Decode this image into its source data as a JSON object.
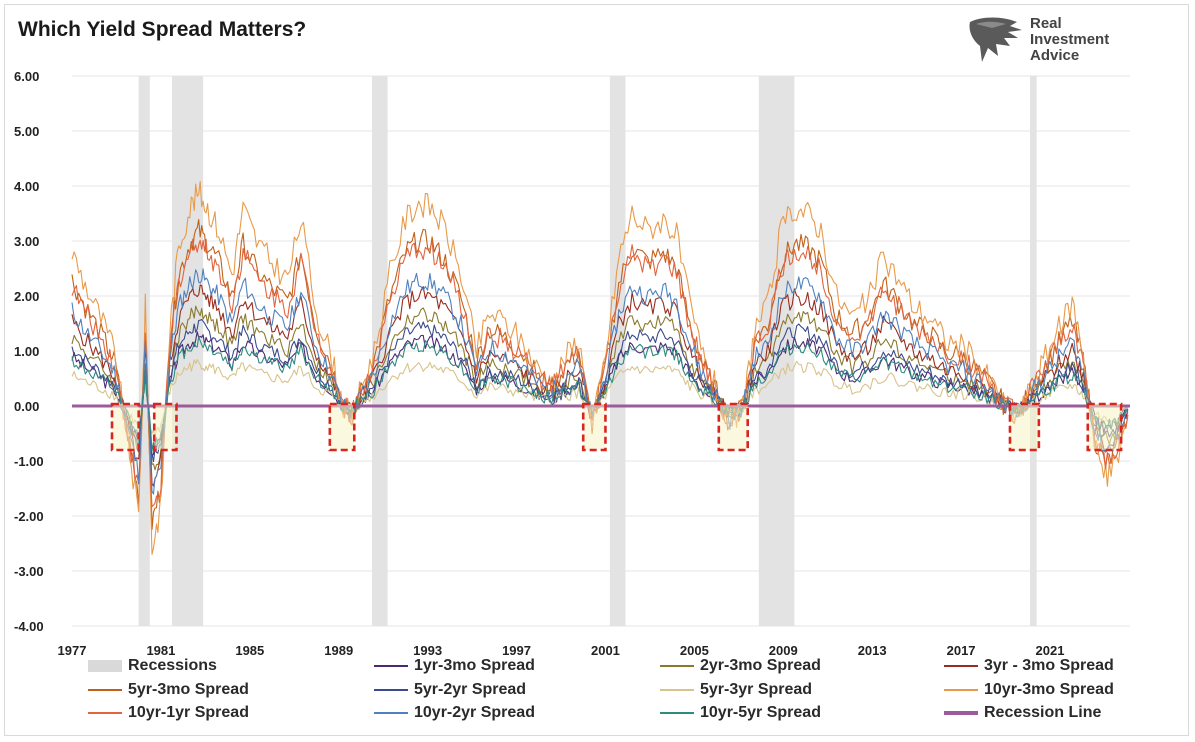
{
  "header": {
    "title": "Which Yield Spread Matters?",
    "logo_lines": [
      "Real",
      "Investment",
      "Advice"
    ]
  },
  "chart_data": {
    "type": "line",
    "title": "Which Yield Spread Matters?",
    "xlabel": "",
    "ylabel": "",
    "xlim": [
      1977,
      2024.6
    ],
    "ylim": [
      -4.0,
      6.0
    ],
    "x_ticks": [
      "1977",
      "1981",
      "1985",
      "1989",
      "1993",
      "1997",
      "2001",
      "2005",
      "2009",
      "2013",
      "2017",
      "2021"
    ],
    "y_ticks": [
      "6.00",
      "5.00",
      "4.00",
      "3.00",
      "2.00",
      "1.00",
      "0.00",
      "-1.00",
      "-2.00",
      "-3.00",
      "-4.00"
    ],
    "grid": true,
    "legend_position": "bottom",
    "recessions": [
      [
        1980.0,
        1980.5
      ],
      [
        1981.5,
        1982.9
      ],
      [
        1990.5,
        1991.2
      ],
      [
        2001.2,
        2001.9
      ],
      [
        2007.9,
        2009.5
      ],
      [
        2020.1,
        2020.4
      ]
    ],
    "inversion_boxes": [
      [
        1978.8,
        1980.0
      ],
      [
        1980.7,
        1981.7
      ],
      [
        1988.6,
        1989.7
      ],
      [
        2000.0,
        2001.0
      ],
      [
        2006.1,
        2007.4
      ],
      [
        2019.2,
        2020.5
      ],
      [
        2022.7,
        2024.2
      ]
    ],
    "series": [
      {
        "name": "1yr-3mo Spread",
        "color": "#4b2a73",
        "scale": 0.32
      },
      {
        "name": "2yr-3mo Spread",
        "color": "#8a7a2e",
        "scale": 0.45
      },
      {
        "name": "3yr - 3mo Spread",
        "color": "#9a2c1e",
        "scale": 0.55
      },
      {
        "name": "5yr-3mo Spread",
        "color": "#c0611a",
        "scale": 0.82
      },
      {
        "name": "5yr-2yr Spread",
        "color": "#3a4a8c",
        "scale": 0.38
      },
      {
        "name": "5yr-3yr Spread",
        "color": "#d8c38a",
        "scale": 0.2
      },
      {
        "name": "10yr-3mo Spread",
        "color": "#e89a4a",
        "scale": 1.0
      },
      {
        "name": "10yr-1yr Spread",
        "color": "#e2643e",
        "scale": 0.78
      },
      {
        "name": "10yr-2yr Spread",
        "color": "#4f81bd",
        "scale": 0.62
      },
      {
        "name": "10yr-5yr Spread",
        "color": "#2f8a80",
        "scale": 0.3
      }
    ],
    "base_x": [
      1977.0,
      1977.6,
      1978.3,
      1978.9,
      1979.5,
      1980.0,
      1980.3,
      1980.6,
      1981.0,
      1981.4,
      1981.8,
      1982.3,
      1982.7,
      1983.1,
      1983.6,
      1984.2,
      1984.7,
      1985.3,
      1986.0,
      1986.7,
      1987.3,
      1988.0,
      1988.6,
      1989.2,
      1989.6,
      1990.0,
      1990.6,
      1991.3,
      1992.0,
      1992.6,
      1993.2,
      1993.8,
      1994.5,
      1995.2,
      1995.8,
      1996.5,
      1997.2,
      1997.9,
      1998.6,
      1999.2,
      1999.8,
      2000.4,
      2001.0,
      2001.6,
      2002.2,
      2002.9,
      2003.6,
      2004.2,
      2004.8,
      2005.4,
      2006.0,
      2006.6,
      2007.2,
      2007.7,
      2008.3,
      2008.9,
      2009.5,
      2010.1,
      2010.7,
      2011.4,
      2012.1,
      2012.8,
      2013.5,
      2014.2,
      2014.9,
      2015.6,
      2016.3,
      2017.0,
      2017.7,
      2018.4,
      2019.0,
      2019.6,
      2020.2,
      2020.8,
      2021.4,
      2022.0,
      2022.5,
      2023.0,
      2023.5,
      2024.0,
      2024.5
    ],
    "base_y": [
      2.8,
      2.2,
      1.6,
      1.0,
      -0.6,
      -2.0,
      1.8,
      -2.6,
      -1.8,
      1.4,
      2.9,
      3.6,
      3.9,
      3.6,
      3.2,
      2.4,
      3.6,
      3.0,
      2.6,
      2.3,
      3.4,
      1.7,
      1.0,
      0.0,
      -0.2,
      0.3,
      1.0,
      2.4,
      3.4,
      3.7,
      3.6,
      3.2,
      2.4,
      1.0,
      1.7,
      1.5,
      1.2,
      0.7,
      0.4,
      0.9,
      1.2,
      -0.4,
      0.9,
      2.7,
      3.5,
      3.2,
      3.4,
      3.1,
      1.8,
      0.9,
      0.3,
      -0.4,
      0.0,
      1.4,
      1.8,
      3.2,
      3.6,
      3.5,
      3.2,
      2.0,
      1.6,
      1.9,
      2.7,
      2.3,
      1.8,
      1.6,
      1.2,
      1.1,
      0.8,
      0.4,
      0.0,
      -0.2,
      0.4,
      0.9,
      1.4,
      1.9,
      1.0,
      -0.7,
      -1.3,
      -1.0,
      -0.2
    ],
    "recession_line": {
      "name": "Recession Line",
      "color": "#9b5c99",
      "y": 0.0
    }
  },
  "legend": {
    "recessions_label": "Recessions",
    "recessions_color": "#d9d9d9",
    "items": [
      {
        "label": "1yr-3mo Spread",
        "color": "#4b2a73"
      },
      {
        "label": "2yr-3mo Spread",
        "color": "#8a7a2e"
      },
      {
        "label": "3yr - 3mo Spread",
        "color": "#9a2c1e"
      },
      {
        "label": "5yr-3mo Spread",
        "color": "#c0611a"
      },
      {
        "label": "5yr-2yr Spread",
        "color": "#3a4a8c"
      },
      {
        "label": "5yr-3yr Spread",
        "color": "#d8c38a"
      },
      {
        "label": "10yr-3mo Spread",
        "color": "#e89a4a"
      },
      {
        "label": "10yr-1yr Spread",
        "color": "#e2643e"
      },
      {
        "label": "10yr-2yr Spread",
        "color": "#4f81bd"
      },
      {
        "label": "10yr-5yr Spread",
        "color": "#2f8a80"
      }
    ],
    "recession_line_label": "Recession Line",
    "recession_line_color": "#9b5c99"
  }
}
